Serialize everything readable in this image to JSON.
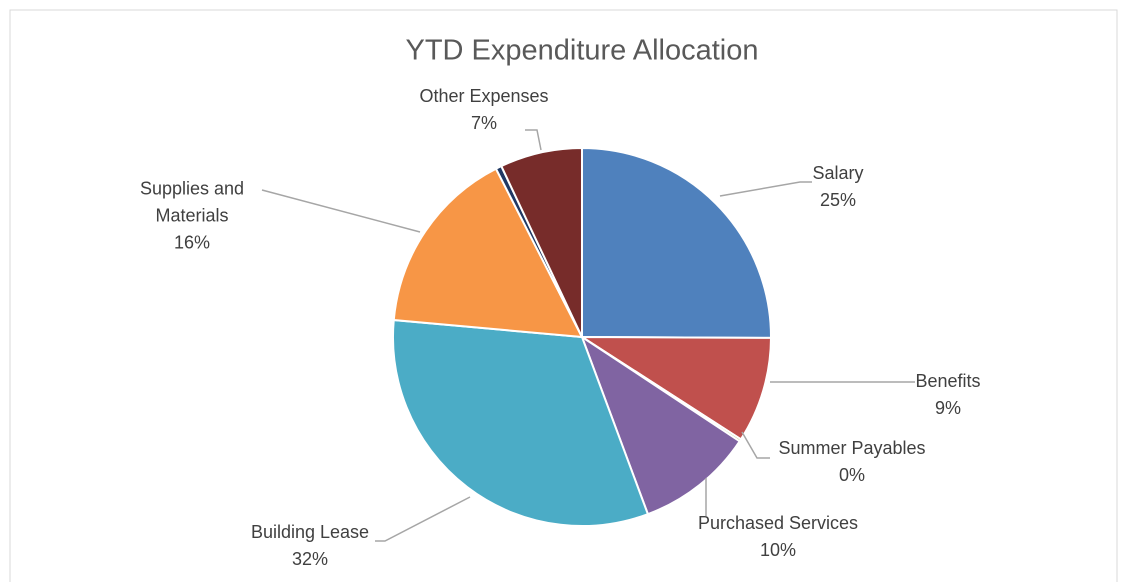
{
  "chart_data": {
    "type": "pie",
    "title": "YTD Expenditure Allocation",
    "categories": [
      "Salary",
      "Benefits",
      "Summer Payables",
      "Purchased Services",
      "Building Lease",
      "Supplies and Materials",
      null,
      "Other Expenses"
    ],
    "values": [
      25,
      9,
      0.2,
      10,
      32,
      16,
      0.5,
      7
    ],
    "value_labels": [
      "25%",
      "9%",
      "0%",
      "10%",
      "32%",
      "16%",
      null,
      "7%"
    ],
    "colors": [
      "#4f81bd",
      "#c0504d",
      "#9bbb59",
      "#8064a2",
      "#4bacc6",
      "#f79646",
      "#1f3864",
      "#772c2a"
    ]
  }
}
